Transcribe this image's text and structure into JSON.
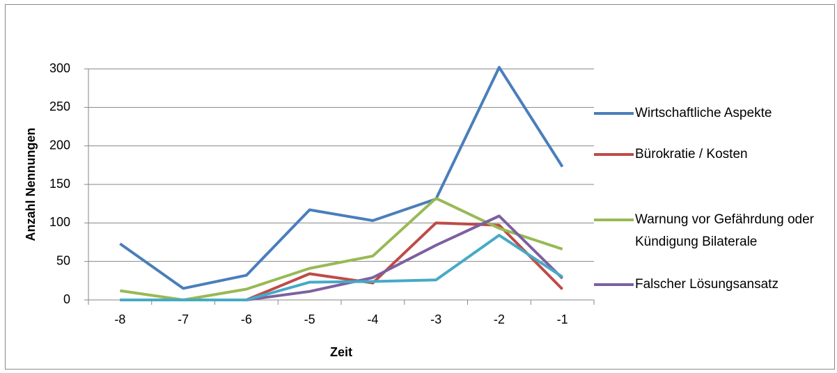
{
  "chart_data": {
    "type": "line",
    "x_label": "Zeit",
    "y_label": "Anzahl Nennungen",
    "categories": [
      "-8",
      "-7",
      "-6",
      "-5",
      "-4",
      "-3",
      "-2",
      "-1"
    ],
    "series": [
      {
        "name": "Wirtschaftliche Aspekte",
        "color": "#4a7ebb",
        "values": [
          73,
          15,
          32,
          117,
          103,
          131,
          302,
          173
        ]
      },
      {
        "name": "Bürokratie / Kosten",
        "color": "#be4b48",
        "values": [
          0,
          0,
          0,
          34,
          22,
          100,
          97,
          14
        ]
      },
      {
        "name": "Warnung vor Gefährdung oder Kündigung Bilaterale",
        "color": "#98b954",
        "values": [
          12,
          0,
          14,
          41,
          57,
          132,
          93,
          66
        ]
      },
      {
        "name": "Falscher Lösungsansatz",
        "color": "#7d60a0",
        "values": [
          0,
          0,
          0,
          11,
          29,
          71,
          109,
          28
        ]
      },
      {
        "color": "#46aac5",
        "values": [
          0,
          0,
          0,
          23,
          24,
          26,
          84,
          30
        ]
      }
    ],
    "ylim": [
      0,
      300
    ],
    "yticks": [
      0,
      50,
      100,
      150,
      200,
      250,
      300
    ],
    "grid": true,
    "legend": "right"
  }
}
